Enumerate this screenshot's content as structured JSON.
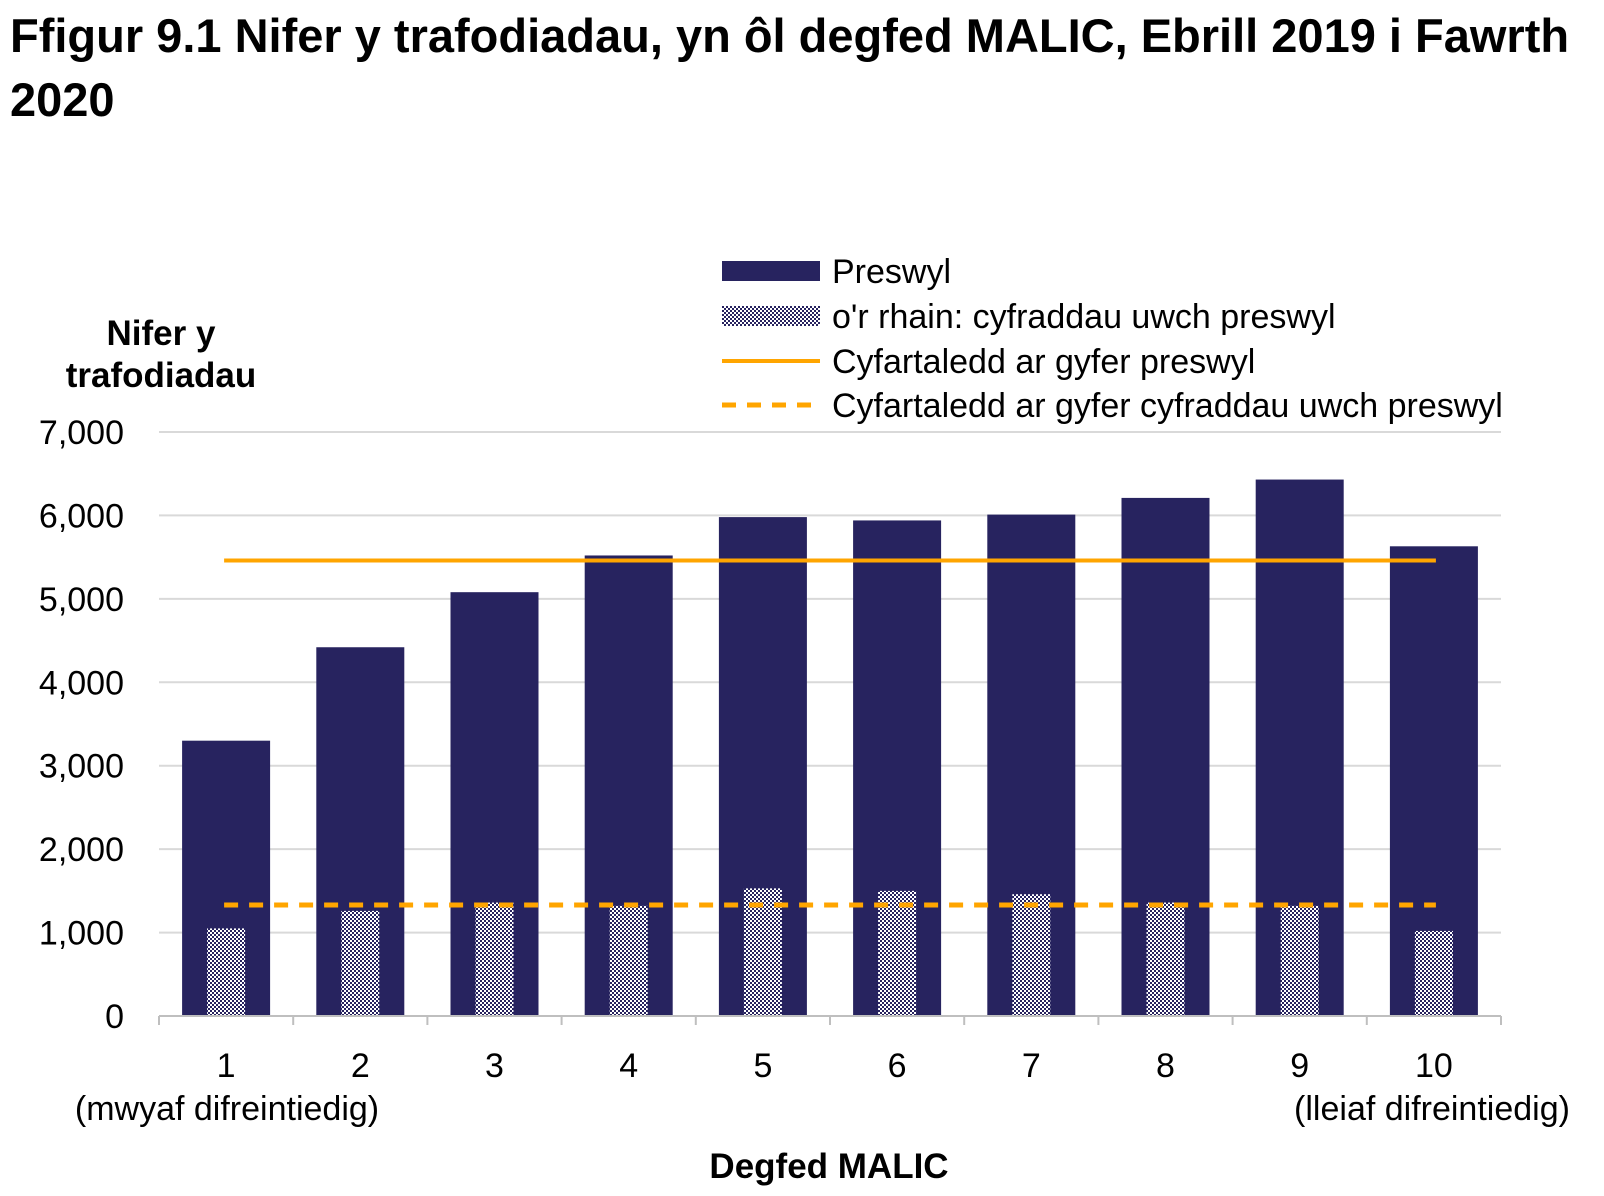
{
  "chart_data": {
    "type": "bar",
    "title": "Ffigur 9.1  Nifer y trafodiadau, yn ôl degfed MALIC, Ebrill 2019 i Fawrth 2020",
    "ylabel_lines": [
      "Nifer y",
      "trafodiadau"
    ],
    "xlabel": "Degfed MALIC",
    "categories": [
      "1",
      "2",
      "3",
      "4",
      "5",
      "6",
      "7",
      "8",
      "9",
      "10"
    ],
    "category_sublabels": {
      "first": "(mwyaf difreintiedig)",
      "last": "(lleiaf difreintiedig)"
    },
    "ylim": [
      0,
      7000
    ],
    "yticks": [
      0,
      1000,
      2000,
      3000,
      4000,
      5000,
      6000,
      7000
    ],
    "ytick_labels": [
      "0",
      "1,000",
      "2,000",
      "3,000",
      "4,000",
      "5,000",
      "6,000",
      "7,000"
    ],
    "grid": true,
    "legend_position": "top",
    "series": [
      {
        "name": "Preswyl",
        "kind": "bar",
        "color": "#27235f",
        "values": [
          3300,
          4420,
          5080,
          5520,
          5980,
          5940,
          6010,
          6210,
          6430,
          5630
        ]
      },
      {
        "name": "o'r rhain: cyfraddau uwch preswyl",
        "kind": "hatched-bar",
        "color": "#27235f",
        "values": [
          1050,
          1260,
          1360,
          1320,
          1530,
          1500,
          1460,
          1360,
          1320,
          1020
        ]
      },
      {
        "name": "Cyfartaledd ar gyfer preswyl",
        "kind": "line",
        "color": "#ffa500",
        "value": 5460
      },
      {
        "name": "Cyfartaledd ar gyfer cyfraddau uwch preswyl",
        "kind": "dashed-line",
        "color": "#ffa500",
        "value": 1330
      }
    ]
  }
}
